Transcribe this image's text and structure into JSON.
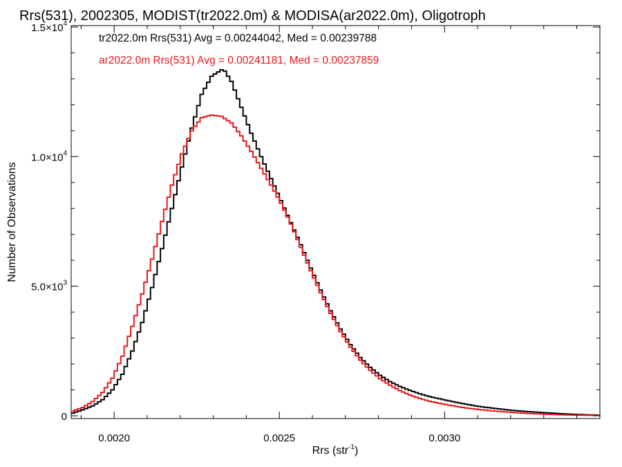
{
  "chart_data": {
    "type": "line",
    "title": "Rrs(531), 2002305, MODIST(tr2022.0m) & MODISA(ar2022.0m), Oligotroph",
    "xlabel": "Rrs (str",
    "xlabel_sup": "-1",
    "xlabel_close": ")",
    "ylabel": "Number of Observations",
    "xlim": [
      0.00187,
      0.00347
    ],
    "ylim": [
      0,
      15000
    ],
    "xticks": [
      {
        "value": 0.002,
        "label": "0.0020"
      },
      {
        "value": 0.0025,
        "label": "0.0025"
      },
      {
        "value": 0.003,
        "label": "0.0030"
      }
    ],
    "yticks": [
      {
        "value": 0,
        "mantissa": "0",
        "exp": ""
      },
      {
        "value": 5000,
        "mantissa": "5.0×10",
        "exp": "3"
      },
      {
        "value": 10000,
        "mantissa": "1.0×10",
        "exp": "4"
      },
      {
        "value": 15000,
        "mantissa": "1.5×10",
        "exp": "4"
      }
    ],
    "annotations": [
      {
        "text": "tr2022.0m Rrs(531) Avg = 0.00244042, Med = 0.00239788",
        "color": "#000000"
      },
      {
        "text": "ar2022.0m Rrs(531) Avg = 0.00241181, Med = 0.00237859",
        "color": "#e8161a"
      }
    ],
    "series": [
      {
        "color": "#000000",
        "x": [
          0.00187,
          0.0019,
          0.00193,
          0.00196,
          0.00199,
          0.00202,
          0.00205,
          0.00208,
          0.00211,
          0.00214,
          0.00217,
          0.0022,
          0.00223,
          0.00226,
          0.00229,
          0.00232,
          0.00233,
          0.00235,
          0.00238,
          0.00241,
          0.00244,
          0.00247,
          0.0025,
          0.00253,
          0.00256,
          0.00259,
          0.00262,
          0.00265,
          0.00268,
          0.00271,
          0.00274,
          0.00277,
          0.0028,
          0.00283,
          0.00286,
          0.00289,
          0.00292,
          0.00295,
          0.003,
          0.00305,
          0.0031,
          0.00315,
          0.0032,
          0.00325,
          0.0033,
          0.00335,
          0.0034,
          0.00347
        ],
        "y": [
          100,
          230,
          380,
          620,
          1000,
          1600,
          2500,
          3600,
          4950,
          6450,
          8000,
          9600,
          11100,
          12400,
          13100,
          13350,
          13300,
          12900,
          11900,
          10900,
          10000,
          9150,
          8300,
          7450,
          6600,
          5700,
          4850,
          4050,
          3350,
          2750,
          2250,
          1870,
          1560,
          1320,
          1130,
          980,
          850,
          740,
          600,
          470,
          360,
          280,
          210,
          160,
          120,
          80,
          50,
          20
        ]
      },
      {
        "color": "#e8161a",
        "x": [
          0.00187,
          0.0019,
          0.00193,
          0.00196,
          0.00199,
          0.00202,
          0.00205,
          0.00208,
          0.00211,
          0.00214,
          0.00217,
          0.0022,
          0.00223,
          0.00226,
          0.00229,
          0.00232,
          0.00235,
          0.00238,
          0.00241,
          0.00244,
          0.00247,
          0.0025,
          0.00253,
          0.00256,
          0.00259,
          0.00262,
          0.00265,
          0.00268,
          0.00271,
          0.00274,
          0.00277,
          0.0028,
          0.00283,
          0.00286,
          0.00289,
          0.00292,
          0.00295,
          0.003,
          0.00305,
          0.0031,
          0.00315,
          0.0032,
          0.00325,
          0.0033,
          0.00335,
          0.0034,
          0.00347
        ],
        "y": [
          180,
          320,
          550,
          900,
          1450,
          2300,
          3450,
          4700,
          6050,
          7500,
          8900,
          10100,
          11000,
          11500,
          11600,
          11550,
          11300,
          10800,
          10200,
          9550,
          8900,
          8200,
          7400,
          6500,
          5600,
          4750,
          3950,
          3250,
          2650,
          2150,
          1750,
          1430,
          1180,
          970,
          800,
          670,
          560,
          430,
          320,
          240,
          180,
          130,
          90,
          60,
          40,
          25,
          10
        ]
      }
    ]
  }
}
